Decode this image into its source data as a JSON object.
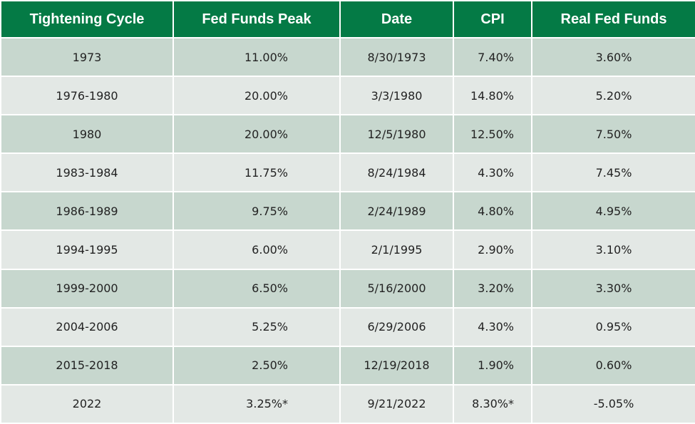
{
  "table": {
    "headers": [
      "Tightening Cycle",
      "Fed Funds Peak",
      "Date",
      "CPI",
      "Real Fed Funds"
    ],
    "rows": [
      [
        "1973",
        "11.00%",
        "8/30/1973",
        "7.40%",
        "3.60%"
      ],
      [
        "1976-1980",
        "20.00%",
        "3/3/1980",
        "14.80%",
        "5.20%"
      ],
      [
        "1980",
        "20.00%",
        "12/5/1980",
        "12.50%",
        "7.50%"
      ],
      [
        "1983-1984",
        "11.75%",
        "8/24/1984",
        "4.30%",
        "7.45%"
      ],
      [
        "1986-1989",
        "9.75%",
        "2/24/1989",
        "4.80%",
        "4.95%"
      ],
      [
        "1994-1995",
        "6.00%",
        "2/1/1995",
        "2.90%",
        "3.10%"
      ],
      [
        "1999-2000",
        "6.50%",
        "5/16/2000",
        "3.20%",
        "3.30%"
      ],
      [
        "2004-2006",
        "5.25%",
        "6/29/2006",
        "4.30%",
        "0.95%"
      ],
      [
        "2015-2018",
        "2.50%",
        "12/19/2018",
        "1.90%",
        "0.60%"
      ],
      [
        "2022",
        "3.25%*",
        "9/21/2022",
        "8.30%*",
        "-5.05%"
      ]
    ]
  },
  "colors": {
    "header_bg": "#047a45",
    "row_odd_bg": "#c7d7ce",
    "row_even_bg": "#e3e8e5"
  }
}
